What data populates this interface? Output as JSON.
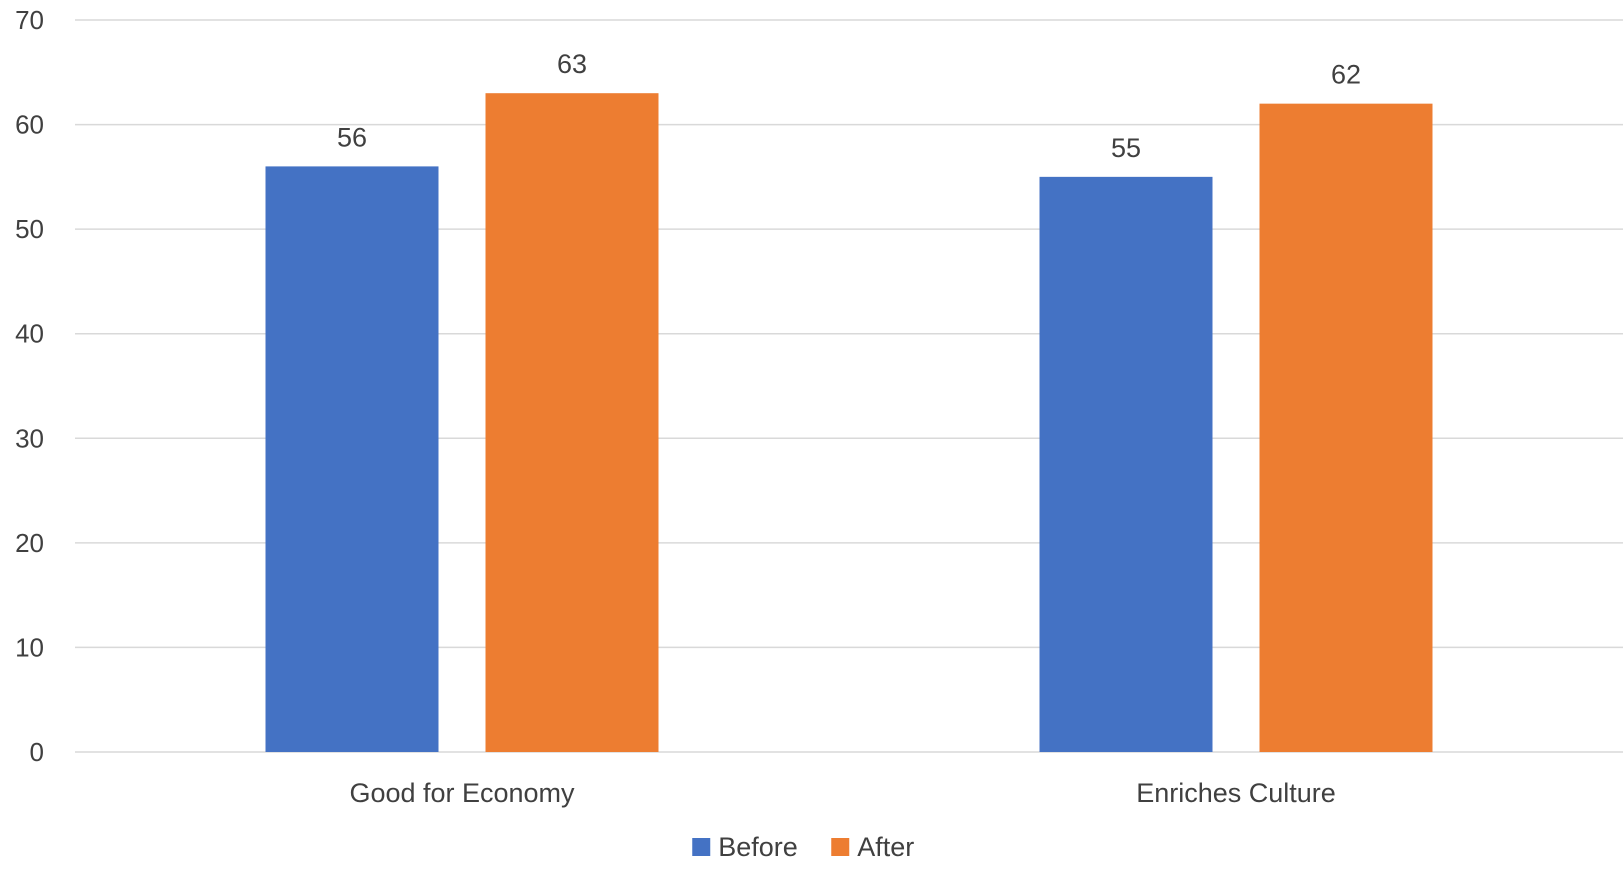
{
  "chart_data": {
    "type": "bar",
    "title": "",
    "xlabel": "",
    "ylabel": "",
    "categories": [
      "Good for Economy",
      "Enriches Culture"
    ],
    "series": [
      {
        "name": "Before",
        "values": [
          56,
          55
        ],
        "color": "#4472C4"
      },
      {
        "name": "After",
        "values": [
          63,
          62
        ],
        "color": "#ED7D31"
      }
    ],
    "ylim": [
      0,
      70
    ],
    "yticks": [
      0,
      10,
      20,
      30,
      40,
      50,
      60,
      70
    ],
    "grid": true,
    "data_labels": true,
    "legend_position": "bottom"
  }
}
